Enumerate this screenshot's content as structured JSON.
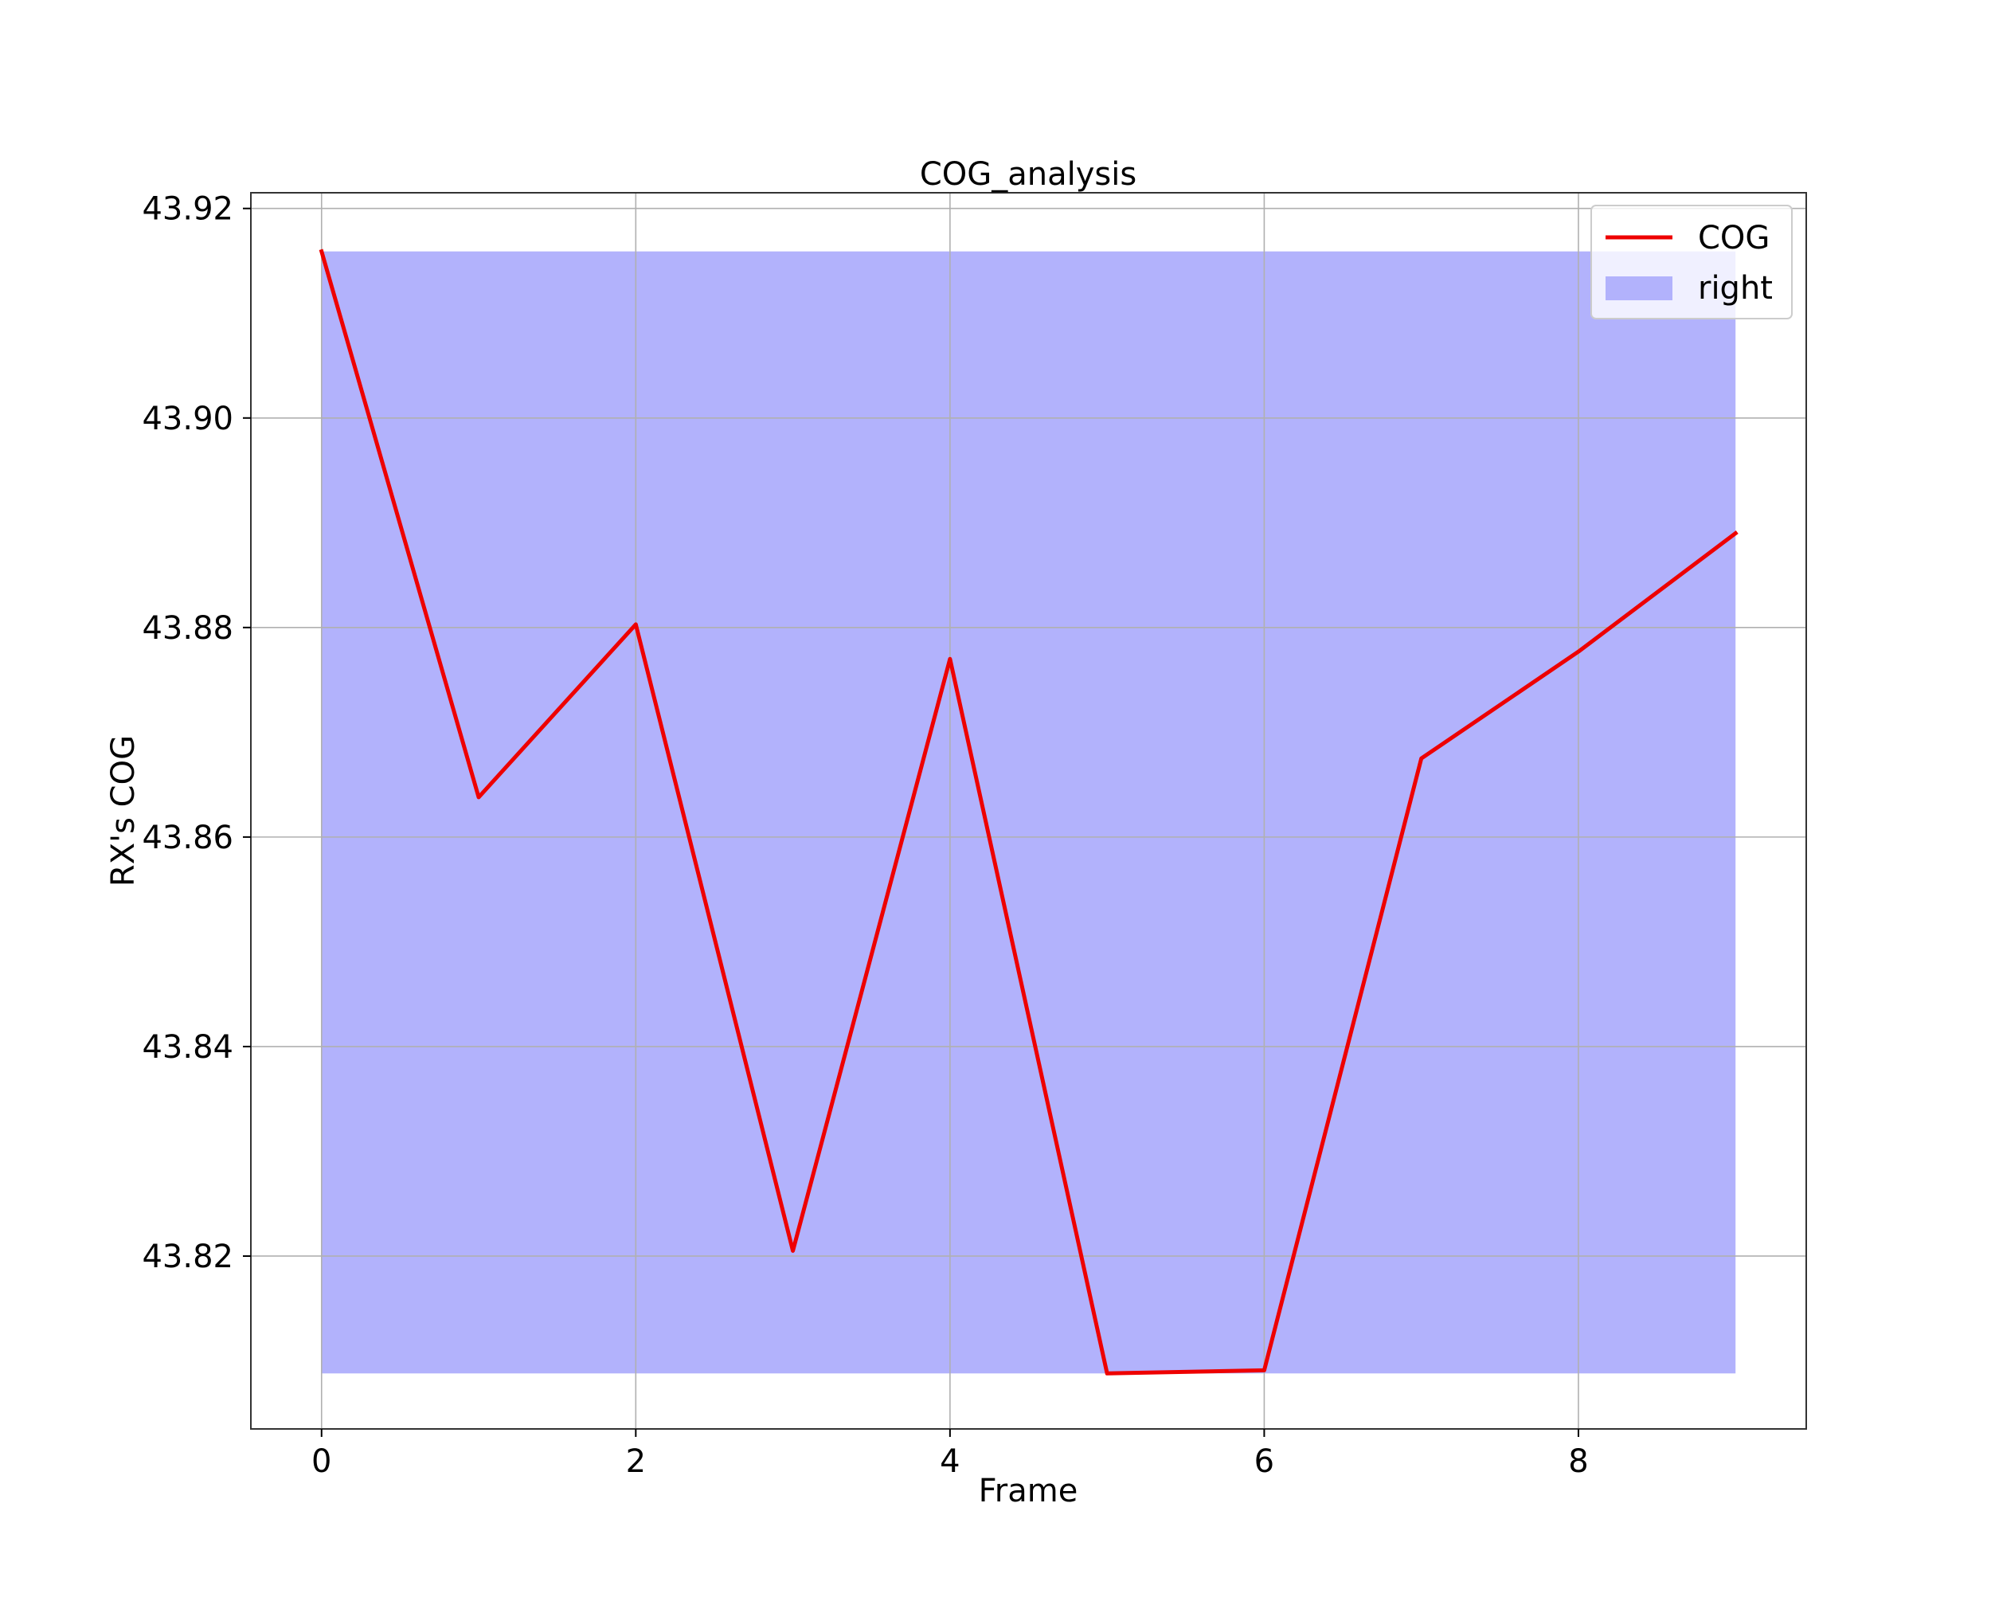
{
  "chart_data": {
    "type": "line",
    "title": "COG_analysis",
    "xlabel": "Frame",
    "ylabel": "RX's COG",
    "xlim": [
      -0.45,
      9.45
    ],
    "ylim": [
      43.8035,
      43.9215
    ],
    "xticks": [
      0,
      2,
      4,
      6,
      8
    ],
    "xtick_labels": [
      "0",
      "2",
      "4",
      "6",
      "8"
    ],
    "yticks": [
      43.82,
      43.84,
      43.86,
      43.88,
      43.9,
      43.92
    ],
    "ytick_labels": [
      "43.82",
      "43.84",
      "43.86",
      "43.88",
      "43.90",
      "43.92"
    ],
    "grid": true,
    "legend_position": "top-right",
    "series": [
      {
        "name": "COG",
        "kind": "line",
        "color": "#ee0000",
        "x": [
          0,
          1,
          2,
          3,
          4,
          5,
          6,
          7,
          8,
          9
        ],
        "y": [
          43.9159,
          43.8638,
          43.8803,
          43.8205,
          43.877,
          43.8088,
          43.8091,
          43.8675,
          43.8777,
          43.889
        ]
      },
      {
        "name": "right",
        "kind": "area",
        "color": "#b2b2fc",
        "x": [
          0,
          9
        ],
        "y_lower": 43.8088,
        "y_upper": 43.9159
      }
    ]
  }
}
